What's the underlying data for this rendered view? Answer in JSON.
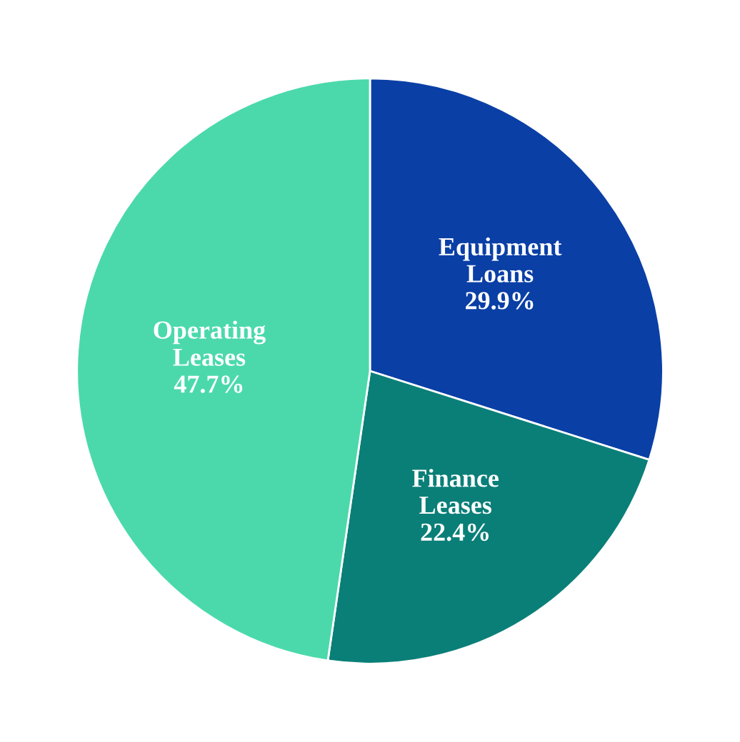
{
  "chart_data": {
    "type": "pie",
    "categories": [
      "Equipment\nLoans",
      "Finance\nLeases",
      "Operating\nLeases"
    ],
    "values": [
      29.9,
      22.4,
      47.7
    ],
    "value_labels": [
      "29.9%",
      "22.4%",
      "47.7%"
    ],
    "colors": [
      "#0a3fa6",
      "#0a7f78",
      "#4bd9ab"
    ],
    "legend": false
  }
}
